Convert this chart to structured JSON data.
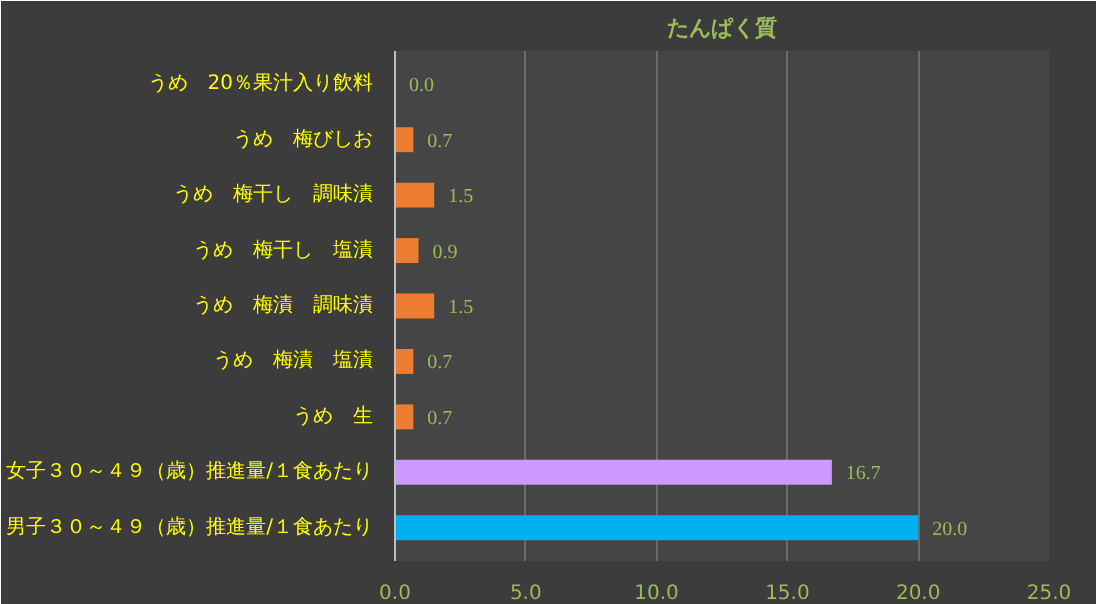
{
  "chart_data": {
    "type": "bar",
    "orientation": "horizontal",
    "title": "たんぱく質",
    "categories": [
      "うめ　20％果汁入り飲料",
      "うめ　梅びしお",
      "うめ　梅干し　調味漬",
      "うめ　梅干し　塩漬",
      "うめ　梅漬　調味漬",
      "うめ　梅漬　塩漬",
      "うめ　生",
      "女子３０～４９（歳）推進量/１食あたり",
      "男子３０～４９（歳）推進量/１食あたり"
    ],
    "values": [
      0.0,
      0.7,
      1.5,
      0.9,
      1.5,
      0.7,
      0.7,
      16.7,
      20.0
    ],
    "colors": [
      "#ed7d31",
      "#ed7d31",
      "#ed7d31",
      "#ed7d31",
      "#ed7d31",
      "#ed7d31",
      "#ed7d31",
      "#cc99ff",
      "#00b0f0"
    ],
    "value_labels": [
      "0.0",
      "0.7",
      "1.5",
      "0.9",
      "1.5",
      "0.7",
      "0.7",
      "16.7",
      "20.0"
    ],
    "xlim": [
      0,
      25
    ],
    "xticks": [
      {
        "value": 0,
        "label": "0.0"
      },
      {
        "value": 5,
        "label": "5.0"
      },
      {
        "value": 10,
        "label": "10.0"
      },
      {
        "value": 15,
        "label": "15.0"
      },
      {
        "value": 20,
        "label": "20.0"
      },
      {
        "value": 25,
        "label": "25.0"
      }
    ],
    "grid": "x"
  }
}
